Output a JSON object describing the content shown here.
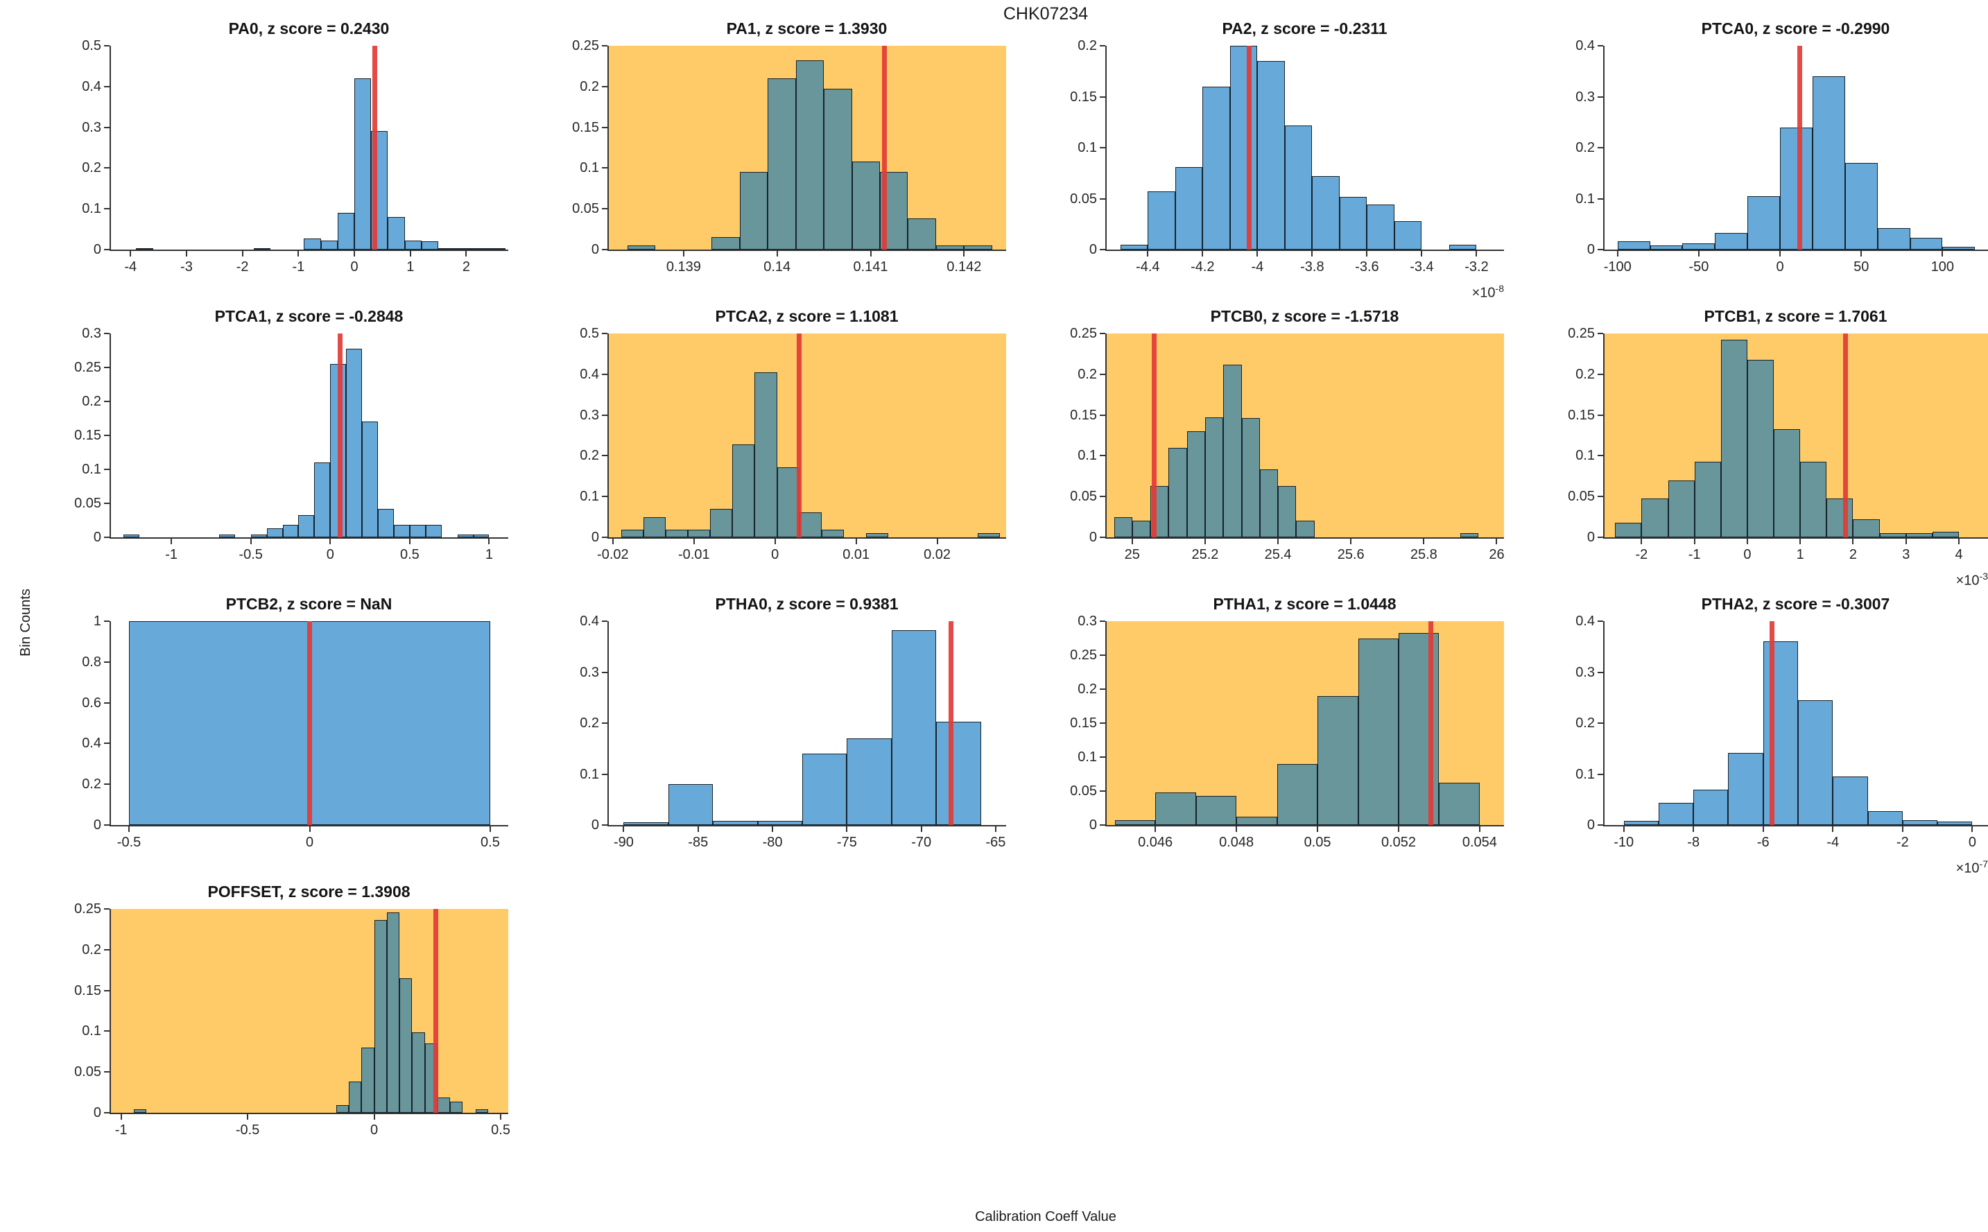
{
  "figure": {
    "title": "CHK07234",
    "xlabel": "Calibration Coeff Value",
    "ylabel": "Bin Counts"
  },
  "colors": {
    "bar_blue": "#67A9D8",
    "bar_teal": "#68969B",
    "flagged_bg": "#FFCB69",
    "normal_bg": "#FFFFFF",
    "marker_red": "#E23B36",
    "bar_edge": "#16222b",
    "axis": "#333333"
  },
  "chart_data": [
    {
      "type": "bar",
      "id": "PA0",
      "param": "PA0",
      "z_score": "0.2430",
      "flagged": false,
      "title": "PA0, z score = 0.2430",
      "xlim": [
        -4.35,
        2.75
      ],
      "ylim": [
        0,
        0.5
      ],
      "ytick_vals": [
        0,
        0.1,
        0.2,
        0.3,
        0.4,
        0.5
      ],
      "ytick_labels": [
        "0",
        "0.1",
        "0.2",
        "0.3",
        "0.4",
        "0.5"
      ],
      "xtick_vals": [
        -4,
        -3,
        -2,
        -1,
        0,
        1,
        2
      ],
      "xtick_labels": [
        "-4",
        "-3",
        "-2",
        "-1",
        "0",
        "1",
        "2"
      ],
      "bin_start": -3.9,
      "bin_width": 0.3,
      "heights": [
        0.004,
        0,
        0,
        0,
        0,
        0,
        0,
        0.004,
        0,
        0,
        0.027,
        0.022,
        0.09,
        0.42,
        0.29,
        0.08,
        0.022,
        0.02,
        0.004,
        0.003,
        0.004,
        0.004
      ],
      "marker_x": 0.37,
      "x_mult_base": null,
      "x_mult_exp": null
    },
    {
      "type": "bar",
      "id": "PA1",
      "param": "PA1",
      "z_score": "1.3930",
      "flagged": true,
      "title": "PA1, z score = 1.3930",
      "xlim": [
        0.1382,
        0.14245
      ],
      "ylim": [
        0,
        0.25
      ],
      "ytick_vals": [
        0,
        0.05,
        0.1,
        0.15,
        0.2,
        0.25
      ],
      "ytick_labels": [
        "0",
        "0.05",
        "0.1",
        "0.15",
        "0.2",
        "0.25"
      ],
      "xtick_vals": [
        0.139,
        0.14,
        0.141,
        0.142
      ],
      "xtick_labels": [
        "0.139",
        "0.14",
        "0.141",
        "0.142"
      ],
      "bin_start": 0.1384,
      "bin_width": 0.0003,
      "heights": [
        0.005,
        0,
        0,
        0.015,
        0.095,
        0.21,
        0.232,
        0.197,
        0.108,
        0.095,
        0.038,
        0.005,
        0.005
      ],
      "marker_x": 0.14115,
      "x_mult_base": null,
      "x_mult_exp": null
    },
    {
      "type": "bar",
      "id": "PA2",
      "param": "PA2",
      "z_score": "-0.2311",
      "flagged": false,
      "title": "PA2, z score = -0.2311",
      "xlim": [
        -4.55,
        -3.1
      ],
      "ylim": [
        0,
        0.2
      ],
      "ytick_vals": [
        0,
        0.05,
        0.1,
        0.15,
        0.2
      ],
      "ytick_labels": [
        "0",
        "0.05",
        "0.1",
        "0.15",
        "0.2"
      ],
      "xtick_vals": [
        -4.4,
        -4.2,
        -4,
        -3.8,
        -3.6,
        -3.4,
        -3.2
      ],
      "xtick_labels": [
        "-4.4",
        "-4.2",
        "-4",
        "-3.8",
        "-3.6",
        "-3.4",
        "-3.2"
      ],
      "bin_start": -4.5,
      "bin_width": 0.1,
      "heights": [
        0.005,
        0.057,
        0.081,
        0.16,
        0.2,
        0.185,
        0.122,
        0.072,
        0.052,
        0.044,
        0.028,
        0,
        0.005
      ],
      "marker_x": -4.03,
      "x_mult_base": "×10",
      "x_mult_exp": "-8"
    },
    {
      "type": "bar",
      "id": "PTCA0",
      "param": "PTCA0",
      "z_score": "-0.2990",
      "flagged": false,
      "title": "PTCA0, z score = -0.2990",
      "xlim": [
        -108,
        128
      ],
      "ylim": [
        0,
        0.4
      ],
      "ytick_vals": [
        0,
        0.1,
        0.2,
        0.3,
        0.4
      ],
      "ytick_labels": [
        "0",
        "0.1",
        "0.2",
        "0.3",
        "0.4"
      ],
      "xtick_vals": [
        -100,
        -50,
        0,
        50,
        100
      ],
      "xtick_labels": [
        "-100",
        "-50",
        "0",
        "50",
        "100"
      ],
      "bin_start": -100,
      "bin_width": 20,
      "heights": [
        0.017,
        0.008,
        0.012,
        0.033,
        0.105,
        0.24,
        0.34,
        0.17,
        0.042,
        0.023,
        0.005
      ],
      "marker_x": 12,
      "x_mult_base": null,
      "x_mult_exp": null
    },
    {
      "type": "bar",
      "id": "PTCA1",
      "param": "PTCA1",
      "z_score": "-0.2848",
      "flagged": false,
      "title": "PTCA1, z score = -0.2848",
      "xlim": [
        -1.38,
        1.12
      ],
      "ylim": [
        0,
        0.3
      ],
      "ytick_vals": [
        0,
        0.05,
        0.1,
        0.15,
        0.2,
        0.25,
        0.3
      ],
      "ytick_labels": [
        "0",
        "0.05",
        "0.1",
        "0.15",
        "0.2",
        "0.25",
        "0.3"
      ],
      "xtick_vals": [
        -1,
        -0.5,
        0,
        0.5,
        1
      ],
      "xtick_labels": [
        "-1",
        "-0.5",
        "0",
        "0.5",
        "1"
      ],
      "bin_start": -1.3,
      "bin_width": 0.1,
      "heights": [
        0.004,
        0,
        0,
        0,
        0,
        0,
        0.004,
        0,
        0.004,
        0.013,
        0.018,
        0.033,
        0.11,
        0.255,
        0.278,
        0.17,
        0.042,
        0.018,
        0.018,
        0.018,
        0,
        0.004,
        0.004
      ],
      "marker_x": 0.06,
      "x_mult_base": null,
      "x_mult_exp": null
    },
    {
      "type": "bar",
      "id": "PTCA2",
      "param": "PTCA2",
      "z_score": "1.1081",
      "flagged": true,
      "title": "PTCA2, z score = 1.1081",
      "xlim": [
        -0.0205,
        0.0285
      ],
      "ylim": [
        0,
        0.5
      ],
      "ytick_vals": [
        0,
        0.1,
        0.2,
        0.3,
        0.4,
        0.5
      ],
      "ytick_labels": [
        "0",
        "0.1",
        "0.2",
        "0.3",
        "0.4",
        "0.5"
      ],
      "xtick_vals": [
        -0.02,
        -0.01,
        0,
        0.01,
        0.02
      ],
      "xtick_labels": [
        "-0.02",
        "-0.01",
        "0",
        "0.01",
        "0.02"
      ],
      "bin_start": -0.019,
      "bin_width": 0.00275,
      "heights": [
        0.018,
        0.05,
        0.018,
        0.018,
        0.07,
        0.228,
        0.405,
        0.172,
        0.062,
        0.018,
        0,
        0.01,
        0,
        0,
        0,
        0,
        0.01
      ],
      "marker_x": 0.003,
      "x_mult_base": null,
      "x_mult_exp": null
    },
    {
      "type": "bar",
      "id": "PTCB0",
      "param": "PTCB0",
      "z_score": "-1.5718",
      "flagged": true,
      "title": "PTCB0, z score = -1.5718",
      "xlim": [
        24.93,
        26.02
      ],
      "ylim": [
        0,
        0.25
      ],
      "ytick_vals": [
        0,
        0.05,
        0.1,
        0.15,
        0.2,
        0.25
      ],
      "ytick_labels": [
        "0",
        "0.05",
        "0.1",
        "0.15",
        "0.2",
        "0.25"
      ],
      "xtick_vals": [
        25,
        25.2,
        25.4,
        25.6,
        25.8,
        26
      ],
      "xtick_labels": [
        "25",
        "25.2",
        "25.4",
        "25.6",
        "25.8",
        "26"
      ],
      "bin_start": 24.95,
      "bin_width": 0.05,
      "heights": [
        0.025,
        0.02,
        0.063,
        0.11,
        0.13,
        0.147,
        0.212,
        0.146,
        0.083,
        0.063,
        0.02,
        0,
        0,
        0,
        0,
        0,
        0,
        0,
        0,
        0.005
      ],
      "marker_x": 25.06,
      "x_mult_base": null,
      "x_mult_exp": null
    },
    {
      "type": "bar",
      "id": "PTCB1",
      "param": "PTCB1",
      "z_score": "1.7061",
      "flagged": true,
      "title": "PTCB1, z score = 1.7061",
      "xlim": [
        -2.7,
        4.55
      ],
      "ylim": [
        0,
        0.25
      ],
      "ytick_vals": [
        0,
        0.05,
        0.1,
        0.15,
        0.2,
        0.25
      ],
      "ytick_labels": [
        "0",
        "0.05",
        "0.1",
        "0.15",
        "0.2",
        "0.25"
      ],
      "xtick_vals": [
        -2,
        -1,
        0,
        1,
        2,
        3,
        4
      ],
      "xtick_labels": [
        "-2",
        "-1",
        "0",
        "1",
        "2",
        "3",
        "4"
      ],
      "bin_start": -2.5,
      "bin_width": 0.5,
      "heights": [
        0.018,
        0.048,
        0.07,
        0.093,
        0.242,
        0.218,
        0.133,
        0.093,
        0.048,
        0.022,
        0.005,
        0.005,
        0.007
      ],
      "marker_x": 1.85,
      "x_mult_base": "×10",
      "x_mult_exp": "-3"
    },
    {
      "type": "bar",
      "id": "PTCB2",
      "param": "PTCB2",
      "z_score": "NaN",
      "flagged": false,
      "title": "PTCB2, z score = NaN",
      "xlim": [
        -0.55,
        0.55
      ],
      "ylim": [
        0,
        1
      ],
      "ytick_vals": [
        0,
        0.2,
        0.4,
        0.6,
        0.8,
        1
      ],
      "ytick_labels": [
        "0",
        "0.2",
        "0.4",
        "0.6",
        "0.8",
        "1"
      ],
      "xtick_vals": [
        -0.5,
        0,
        0.5
      ],
      "xtick_labels": [
        "-0.5",
        "0",
        "0.5"
      ],
      "bin_start": -0.5,
      "bin_width": 1.0,
      "heights": [
        1
      ],
      "marker_x": 0,
      "x_mult_base": null,
      "x_mult_exp": null
    },
    {
      "type": "bar",
      "id": "PTHA0",
      "param": "PTHA0",
      "z_score": "0.9381",
      "flagged": false,
      "title": "PTHA0, z score = 0.9381",
      "xlim": [
        -91,
        -64.3
      ],
      "ylim": [
        0,
        0.4
      ],
      "ytick_vals": [
        0,
        0.1,
        0.2,
        0.3,
        0.4
      ],
      "ytick_labels": [
        "0",
        "0.1",
        "0.2",
        "0.3",
        "0.4"
      ],
      "xtick_vals": [
        -90,
        -85,
        -80,
        -75,
        -70,
        -65
      ],
      "xtick_labels": [
        "-90",
        "-85",
        "-80",
        "-75",
        "-70",
        "-65"
      ],
      "bin_start": -90,
      "bin_width": 3,
      "heights": [
        0.005,
        0.08,
        0.008,
        0.008,
        0.14,
        0.17,
        0.382,
        0.203
      ],
      "marker_x": -68,
      "x_mult_base": null,
      "x_mult_exp": null
    },
    {
      "type": "bar",
      "id": "PTHA1",
      "param": "PTHA1",
      "z_score": "1.0448",
      "flagged": true,
      "title": "PTHA1, z score = 1.0448",
      "xlim": [
        0.0448,
        0.0546
      ],
      "ylim": [
        0,
        0.3
      ],
      "ytick_vals": [
        0,
        0.05,
        0.1,
        0.15,
        0.2,
        0.25,
        0.3
      ],
      "ytick_labels": [
        "0",
        "0.05",
        "0.1",
        "0.15",
        "0.2",
        "0.25",
        "0.3"
      ],
      "xtick_vals": [
        0.046,
        0.048,
        0.05,
        0.052,
        0.054
      ],
      "xtick_labels": [
        "0.046",
        "0.048",
        "0.05",
        "0.052",
        "0.054"
      ],
      "bin_start": 0.045,
      "bin_width": 0.001,
      "heights": [
        0.007,
        0.048,
        0.043,
        0.012,
        0.09,
        0.19,
        0.275,
        0.283,
        0.062
      ],
      "marker_x": 0.0528,
      "x_mult_base": null,
      "x_mult_exp": null
    },
    {
      "type": "bar",
      "id": "PTHA2",
      "param": "PTHA2",
      "z_score": "-0.3007",
      "flagged": false,
      "title": "PTHA2, z score = -0.3007",
      "xlim": [
        -10.55,
        0.45
      ],
      "ylim": [
        0,
        0.4
      ],
      "ytick_vals": [
        0,
        0.1,
        0.2,
        0.3,
        0.4
      ],
      "ytick_labels": [
        "0",
        "0.1",
        "0.2",
        "0.3",
        "0.4"
      ],
      "xtick_vals": [
        -10,
        -8,
        -6,
        -4,
        -2,
        0
      ],
      "xtick_labels": [
        "-10",
        "-8",
        "-6",
        "-4",
        "-2",
        "0"
      ],
      "bin_start": -10,
      "bin_width": 1,
      "heights": [
        0.008,
        0.043,
        0.07,
        0.142,
        0.36,
        0.245,
        0.095,
        0.027,
        0.01,
        0.007
      ],
      "marker_x": -5.75,
      "x_mult_base": "×10",
      "x_mult_exp": "-7"
    },
    {
      "type": "bar",
      "id": "POFFSET",
      "param": "POFFSET",
      "z_score": "1.3908",
      "flagged": true,
      "title": "POFFSET, z score = 1.3908",
      "xlim": [
        -1.04,
        0.53
      ],
      "ylim": [
        0,
        0.25
      ],
      "ytick_vals": [
        0,
        0.05,
        0.1,
        0.15,
        0.2,
        0.25
      ],
      "ytick_labels": [
        "0",
        "0.05",
        "0.1",
        "0.15",
        "0.2",
        "0.25"
      ],
      "xtick_vals": [
        -1,
        -0.5,
        0,
        0.5
      ],
      "xtick_labels": [
        "-1",
        "-0.5",
        "0",
        "0.5"
      ],
      "bin_start": -0.95,
      "bin_width": 0.05,
      "heights": [
        0.004,
        0,
        0,
        0,
        0,
        0,
        0,
        0,
        0,
        0,
        0,
        0,
        0,
        0,
        0,
        0,
        0.009,
        0.038,
        0.08,
        0.236,
        0.246,
        0.165,
        0.099,
        0.085,
        0.019,
        0.014,
        0,
        0.004
      ],
      "marker_x": 0.245,
      "x_mult_base": null,
      "x_mult_exp": null
    }
  ]
}
